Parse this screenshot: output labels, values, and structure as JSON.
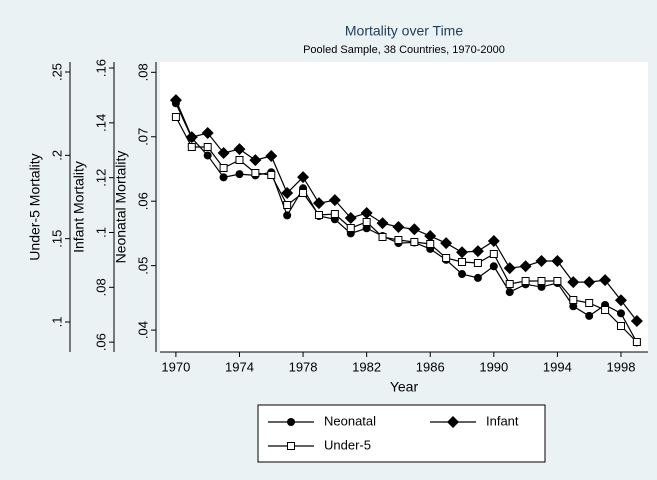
{
  "chart_data": {
    "type": "line",
    "title": "Mortality over Time",
    "subtitle": "Pooled Sample, 38 Countries, 1970-2000",
    "x_label": "Year",
    "y_label": "Neonatal Mortality",
    "y2_label": "Infant Mortality",
    "y3_label": "Under-5 Mortality",
    "x": [
      1970,
      1971,
      1972,
      1973,
      1974,
      1975,
      1976,
      1977,
      1978,
      1979,
      1980,
      1981,
      1982,
      1983,
      1984,
      1985,
      1986,
      1987,
      1988,
      1989,
      1990,
      1991,
      1992,
      1993,
      1994,
      1995,
      1996,
      1997,
      1998,
      1999
    ],
    "xlim": [
      1969,
      1999.7
    ],
    "xticks": [
      1970,
      1974,
      1978,
      1982,
      1986,
      1990,
      1994,
      1998
    ],
    "ylim": [
      0.0366,
      0.0816
    ],
    "yticks": [
      {
        "value": 0.04,
        "label": ".04"
      },
      {
        "value": 0.05,
        "label": ".05"
      },
      {
        "value": 0.06,
        "label": ".06"
      },
      {
        "value": 0.07,
        "label": ".07"
      },
      {
        "value": 0.08,
        "label": ".08"
      }
    ],
    "y2lim": [
      0.0564,
      0.1622
    ],
    "y2ticks": [
      {
        "value": 0.06,
        "label": ".06"
      },
      {
        "value": 0.08,
        "label": ".08"
      },
      {
        "value": 0.1,
        "label": ".1"
      },
      {
        "value": 0.12,
        "label": ".12"
      },
      {
        "value": 0.14,
        "label": ".14"
      },
      {
        "value": 0.16,
        "label": ".16"
      }
    ],
    "y3lim": [
      0.082,
      0.256
    ],
    "y3ticks": [
      {
        "value": 0.1,
        "label": ".1"
      },
      {
        "value": 0.15,
        "label": ".15"
      },
      {
        "value": 0.2,
        "label": ".2"
      },
      {
        "value": 0.25,
        "label": ".25"
      }
    ],
    "series": [
      {
        "name": "Neonatal",
        "color": "#000000",
        "marker": "circle",
        "axis": "y",
        "values": [
          0.0752,
          0.0698,
          0.0671,
          0.0637,
          0.0642,
          0.064,
          0.0645,
          0.0578,
          0.062,
          0.0577,
          0.0572,
          0.055,
          0.0558,
          0.0546,
          0.0535,
          0.0536,
          0.0526,
          0.0509,
          0.0487,
          0.0481,
          0.0499,
          0.0459,
          0.0471,
          0.0467,
          0.0473,
          0.0437,
          0.0422,
          0.0439,
          0.0426,
          0.0381
        ]
      },
      {
        "name": "Infant",
        "color": "#000000",
        "marker": "diamond",
        "axis": "y2",
        "values": [
          0.1483,
          0.1348,
          0.1363,
          0.129,
          0.1304,
          0.1264,
          0.1279,
          0.1144,
          0.1202,
          0.1107,
          0.1118,
          0.1053,
          0.1071,
          0.1034,
          0.102,
          0.1012,
          0.0987,
          0.0961,
          0.0928,
          0.0932,
          0.0969,
          0.087,
          0.0877,
          0.0896,
          0.0896,
          0.0819,
          0.0819,
          0.0826,
          0.0753,
          0.0677
        ]
      },
      {
        "name": "Under-5",
        "color": "#000000",
        "marker": "square-hollow",
        "axis": "y3",
        "values": [
          0.223,
          0.205,
          0.205,
          0.1924,
          0.1972,
          0.1894,
          0.1882,
          0.1702,
          0.1774,
          0.1642,
          0.1648,
          0.1564,
          0.16,
          0.151,
          0.1492,
          0.148,
          0.1468,
          0.1384,
          0.136,
          0.1354,
          0.1408,
          0.1228,
          0.1246,
          0.1246,
          0.1246,
          0.1132,
          0.1114,
          0.1072,
          0.0976,
          0.088
        ]
      }
    ]
  }
}
